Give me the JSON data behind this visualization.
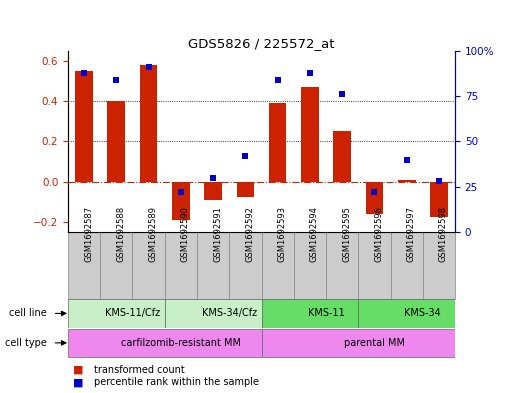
{
  "title": "GDS5826 / 225572_at",
  "samples": [
    "GSM1692587",
    "GSM1692588",
    "GSM1692589",
    "GSM1692590",
    "GSM1692591",
    "GSM1692592",
    "GSM1692593",
    "GSM1692594",
    "GSM1692595",
    "GSM1692596",
    "GSM1692597",
    "GSM1692598"
  ],
  "transformed_count": [
    0.55,
    0.4,
    0.58,
    -0.19,
    -0.09,
    -0.075,
    0.39,
    0.47,
    0.25,
    -0.16,
    0.01,
    -0.175
  ],
  "percentile_rank": [
    88,
    84,
    91,
    22,
    30,
    42,
    84,
    88,
    76,
    22,
    40,
    28
  ],
  "cell_line_groups": [
    {
      "label": "KMS-11/Cfz",
      "start": 0,
      "end": 3,
      "color": "#c8f0c8"
    },
    {
      "label": "KMS-34/Cfz",
      "start": 3,
      "end": 6,
      "color": "#c8f0c8"
    },
    {
      "label": "KMS-11",
      "start": 6,
      "end": 9,
      "color": "#66dd66"
    },
    {
      "label": "KMS-34",
      "start": 9,
      "end": 12,
      "color": "#66dd66"
    }
  ],
  "cell_type_groups": [
    {
      "label": "carfilzomib-resistant MM",
      "start": 0,
      "end": 6,
      "color": "#ee88ee"
    },
    {
      "label": "parental MM",
      "start": 6,
      "end": 12,
      "color": "#ee88ee"
    }
  ],
  "ylim_left": [
    -0.25,
    0.65
  ],
  "ylim_right": [
    0,
    100
  ],
  "yticks_left": [
    -0.2,
    0.0,
    0.2,
    0.4,
    0.6
  ],
  "yticks_right": [
    0,
    25,
    50,
    75,
    100
  ],
  "bar_color": "#cc2200",
  "dot_color": "#0000cc",
  "zero_line_color": "#cc2200",
  "sample_box_color": "#cccccc",
  "legend_items": [
    {
      "label": "transformed count",
      "color": "#cc2200"
    },
    {
      "label": "percentile rank within the sample",
      "color": "#0000cc"
    }
  ]
}
